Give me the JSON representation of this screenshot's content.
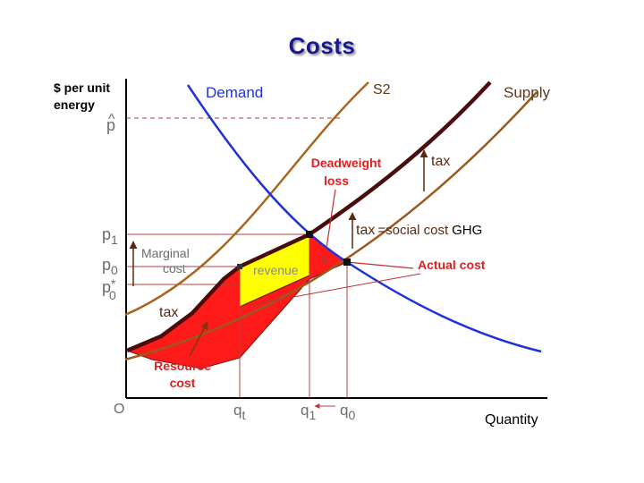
{
  "title": "Costs",
  "colors": {
    "demand": "#1f32d8",
    "supply": "#9a5a1e",
    "s2": "#a8651f",
    "market_curve": "#4a0d0d",
    "deadweight_text": "#e02020",
    "actual_cost_text": "#e02020",
    "revenue_fill": "#ffff00",
    "resource_fill": "#ff1a1a",
    "guide_lines": "#b04040",
    "text_gray": "#6b6b6b"
  },
  "axes": {
    "y_label_line1": "$ per unit",
    "y_label_line2": "energy",
    "x_label": "Quantity",
    "origin": "O"
  },
  "curves": {
    "demand": "Demand",
    "supply": "Supply",
    "s2": "S2"
  },
  "price_labels": {
    "p_hat": "p",
    "p_hat_accent": "^",
    "p1_base": "p",
    "p1_sub": "1",
    "p0_base": "p",
    "p0_sub": "0",
    "p0star_base": "p",
    "p0star_sub": "0",
    "p0star_sup": "*"
  },
  "quantity_labels": {
    "qt_base": "q",
    "qt_sub": "t",
    "q1_base": "q",
    "q1_sub": "1",
    "q0_base": "q",
    "q0_sub": "0"
  },
  "annotations": {
    "deadweight_line1": "Deadweight",
    "deadweight_line2": "loss",
    "tax_right": "tax",
    "tax_eq_tax": "tax",
    "tax_eq_rest": "=social cost",
    "tax_eq_ghg": "GHG",
    "actual_cost": "Actual cost",
    "marginal_line1": "Marginal",
    "marginal_line2": "cost",
    "revenue": "revenue",
    "tax_lower": "tax",
    "resource_line1": "Resource",
    "resource_line2": "cost"
  }
}
